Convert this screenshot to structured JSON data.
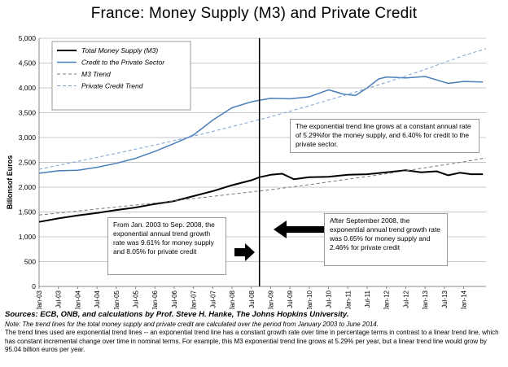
{
  "title": "France: Money Supply (M3) and Private Credit",
  "chart_data": {
    "type": "line",
    "ylabel": "Billonsof Euros",
    "ylim": [
      0,
      5000
    ],
    "yticks": [
      "0",
      "500",
      "1,000",
      "1,500",
      "2,000",
      "2,500",
      "3,000",
      "3,500",
      "4,000",
      "4,500",
      "5,000"
    ],
    "xlim": [
      2003.0,
      2014.58
    ],
    "xtick_labels": [
      "Jan-03",
      "Jul-03",
      "Jan-04",
      "Jul-04",
      "Jan-05",
      "Jul-05",
      "Jan-06",
      "Jul-06",
      "Jan-07",
      "Jul-07",
      "Jan-08",
      "Jul-08",
      "Jan-09",
      "Jul-09",
      "Jan-10",
      "Jul-10",
      "Jan-11",
      "Jul-11",
      "Jan-12",
      "Jul-12",
      "Jan-13",
      "Jul-13",
      "Jan-14"
    ],
    "marker_line_x": 2008.71,
    "grid": true,
    "legend_position": "top-left",
    "series": [
      {
        "name": "Total Money Supply (M3)",
        "color": "#000000",
        "style": "solid",
        "width": 2,
        "x": [
          2003.0,
          2003.5,
          2004.0,
          2004.5,
          2005.0,
          2005.5,
          2006.0,
          2006.5,
          2007.0,
          2007.5,
          2008.0,
          2008.5,
          2008.71,
          2009.0,
          2009.3,
          2009.6,
          2010.0,
          2010.5,
          2011.0,
          2011.5,
          2012.0,
          2012.5,
          2012.9,
          2013.3,
          2013.6,
          2013.9,
          2014.2,
          2014.5
        ],
        "y": [
          1300,
          1370,
          1430,
          1480,
          1540,
          1590,
          1660,
          1720,
          1820,
          1920,
          2040,
          2140,
          2200,
          2250,
          2270,
          2160,
          2200,
          2210,
          2250,
          2260,
          2300,
          2340,
          2300,
          2320,
          2240,
          2290,
          2260,
          2260
        ]
      },
      {
        "name": "Credit to the Private Sector",
        "color": "#4a7ebb",
        "style": "solid",
        "width": 1.5,
        "x": [
          2003.0,
          2003.5,
          2004.0,
          2004.5,
          2005.0,
          2005.5,
          2006.0,
          2006.5,
          2007.0,
          2007.5,
          2008.0,
          2008.5,
          2008.71,
          2009.0,
          2009.5,
          2010.0,
          2010.5,
          2010.9,
          2011.2,
          2011.5,
          2011.8,
          2012.0,
          2012.5,
          2013.0,
          2013.3,
          2013.6,
          2014.0,
          2014.5
        ],
        "y": [
          2280,
          2330,
          2340,
          2400,
          2480,
          2580,
          2720,
          2880,
          3050,
          3350,
          3600,
          3720,
          3750,
          3790,
          3780,
          3820,
          3960,
          3870,
          3850,
          4000,
          4180,
          4220,
          4200,
          4230,
          4160,
          4090,
          4130,
          4120
        ]
      },
      {
        "name": "M3 Trend",
        "color": "#777777",
        "style": "dashed",
        "width": 1,
        "x": [
          2003.0,
          2004.0,
          2005.0,
          2006.0,
          2007.0,
          2008.0,
          2009.0,
          2010.0,
          2011.0,
          2012.0,
          2013.0,
          2014.0,
          2014.58
        ],
        "y": [
          1440,
          1520,
          1600,
          1680,
          1770,
          1860,
          1950,
          2050,
          2160,
          2270,
          2390,
          2510,
          2590
        ]
      },
      {
        "name": "Private Credit Trend",
        "color": "#7aa0d0",
        "style": "dashed",
        "width": 1,
        "x": [
          2003.0,
          2004.0,
          2005.0,
          2006.0,
          2007.0,
          2008.0,
          2009.0,
          2010.0,
          2011.0,
          2012.0,
          2013.0,
          2014.0,
          2014.58
        ],
        "y": [
          2360,
          2520,
          2680,
          2850,
          3030,
          3220,
          3420,
          3640,
          3870,
          4110,
          4370,
          4650,
          4790
        ]
      }
    ],
    "annotations": {
      "box_upper_right": "The exponential trend line grows at a constant annual rate of 5.29%for the money supply, and 6.40% for credit to the private sector.",
      "box_left": "From Jan. 2003 to Sep. 2008, the exponential annual trend growth rate was  9.61% for money supply and  8.05% for private credit",
      "box_right": "After September 2008, the exponential annual trend  growth rate was  0.65%  for money supply and   2.46% for private credit"
    }
  },
  "footer": {
    "sources": "Sources: ECB, ONB, and calculations by Prof. Steve H. Hanke, The Johns Hopkins University.",
    "note1": "Note: The trend lines for the total money supply and private credit are calculated over the period from January 2003 to June 2014.",
    "note2": "The trend lines used are exponential trend lines -- an exponential trend line has a constant growth rate over time in percentage terms in contrast to a linear trend line, which has constant incremental change over time in nominal terms. For example, this M3 exponential trend line grows at 5.29% per year, but a linear trend line would grow by  95.04  billion euros per year."
  }
}
